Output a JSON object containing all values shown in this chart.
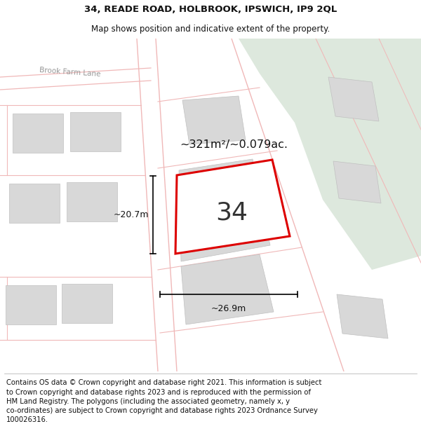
{
  "title": "34, READE ROAD, HOLBROOK, IPSWICH, IP9 2QL",
  "subtitle": "Map shows position and indicative extent of the property.",
  "footer": "Contains OS data © Crown copyright and database right 2021. This information is subject\nto Crown copyright and database rights 2023 and is reproduced with the permission of\nHM Land Registry. The polygons (including the associated geometry, namely x, y\nco-ordinates) are subject to Crown copyright and database rights 2023 Ordnance Survey\n100026316.",
  "bg_map_color": "#f0f0ee",
  "green_area_color": "#dde8dd",
  "road_color": "#f0b8b8",
  "building_color": "#d8d8d8",
  "highlight_color": "#dd0000",
  "area_text": "~321m²/~0.079ac.",
  "label_34": "34",
  "dim_width": "~26.9m",
  "dim_height": "~20.7m",
  "street_name": "Brook Farm Lane",
  "title_fontsize": 9.5,
  "subtitle_fontsize": 8.5,
  "footer_fontsize": 7.2
}
